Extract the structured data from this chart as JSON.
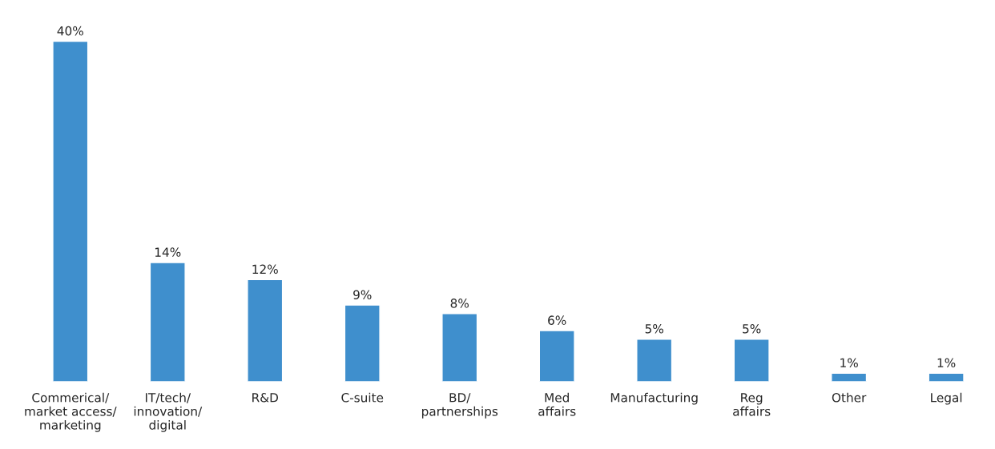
{
  "chart_data": {
    "type": "bar",
    "categories": [
      "Commerical/\nmarket access/\nmarketing",
      "IT/tech/\ninnovation/\ndigital",
      "R&D",
      "C-suite",
      "BD/\npartnerships",
      "Med\naffairs",
      "Manufacturing",
      "Reg\naffairs",
      "Other",
      "Legal"
    ],
    "values": [
      40,
      14,
      12,
      9,
      8,
      6,
      5,
      5,
      1,
      1
    ],
    "value_labels": [
      "40%",
      "14%",
      "12%",
      "9%",
      "8%",
      "6%",
      "5%",
      "5%",
      "1%",
      "1%"
    ],
    "color": "#3f8fcd",
    "grid": false,
    "legend": false
  }
}
